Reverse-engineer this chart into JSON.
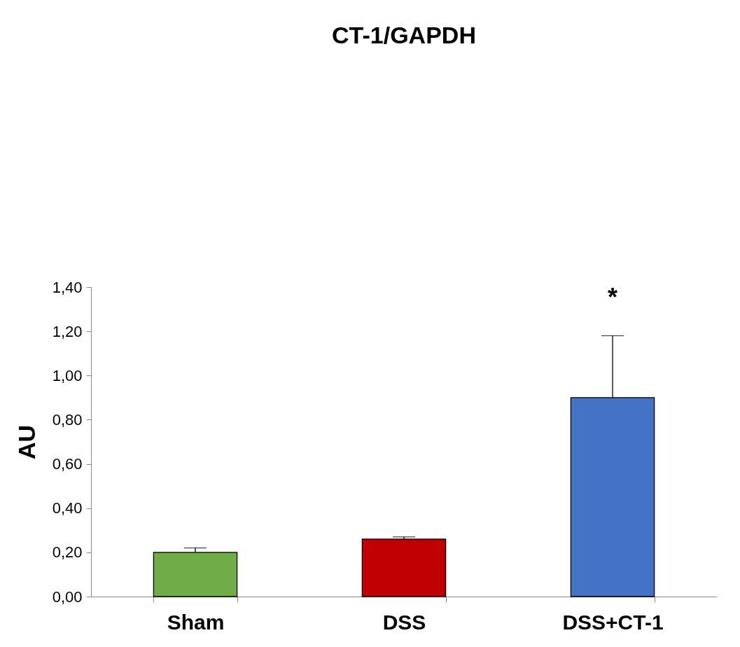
{
  "chart_data": {
    "type": "bar",
    "title": "CT-1/GAPDH",
    "ylabel": "AU",
    "categories": [
      "Sham",
      "DSS",
      "DSS+CT-1"
    ],
    "values": [
      0.2,
      0.26,
      0.9
    ],
    "colors": [
      "#70ad47",
      "#c00000",
      "#4472c4"
    ],
    "errors": [
      [
        0.2,
        0.22
      ],
      [
        0.26,
        0.27
      ],
      [
        0.9,
        1.18
      ]
    ],
    "ylim": [
      0,
      1.4
    ],
    "yticks": [
      {
        "value": 0,
        "label": "0,00"
      },
      {
        "value": 0.2,
        "label": "0,20"
      },
      {
        "value": 0.4,
        "label": "0,40"
      },
      {
        "value": 0.6,
        "label": "0,60"
      },
      {
        "value": 0.8,
        "label": "0,80"
      },
      {
        "value": 1.0,
        "label": "1,00"
      },
      {
        "value": 1.2,
        "label": "1,20"
      },
      {
        "value": 1.4,
        "label": "1,40"
      }
    ],
    "annotations": [
      "*"
    ],
    "grid": false
  }
}
